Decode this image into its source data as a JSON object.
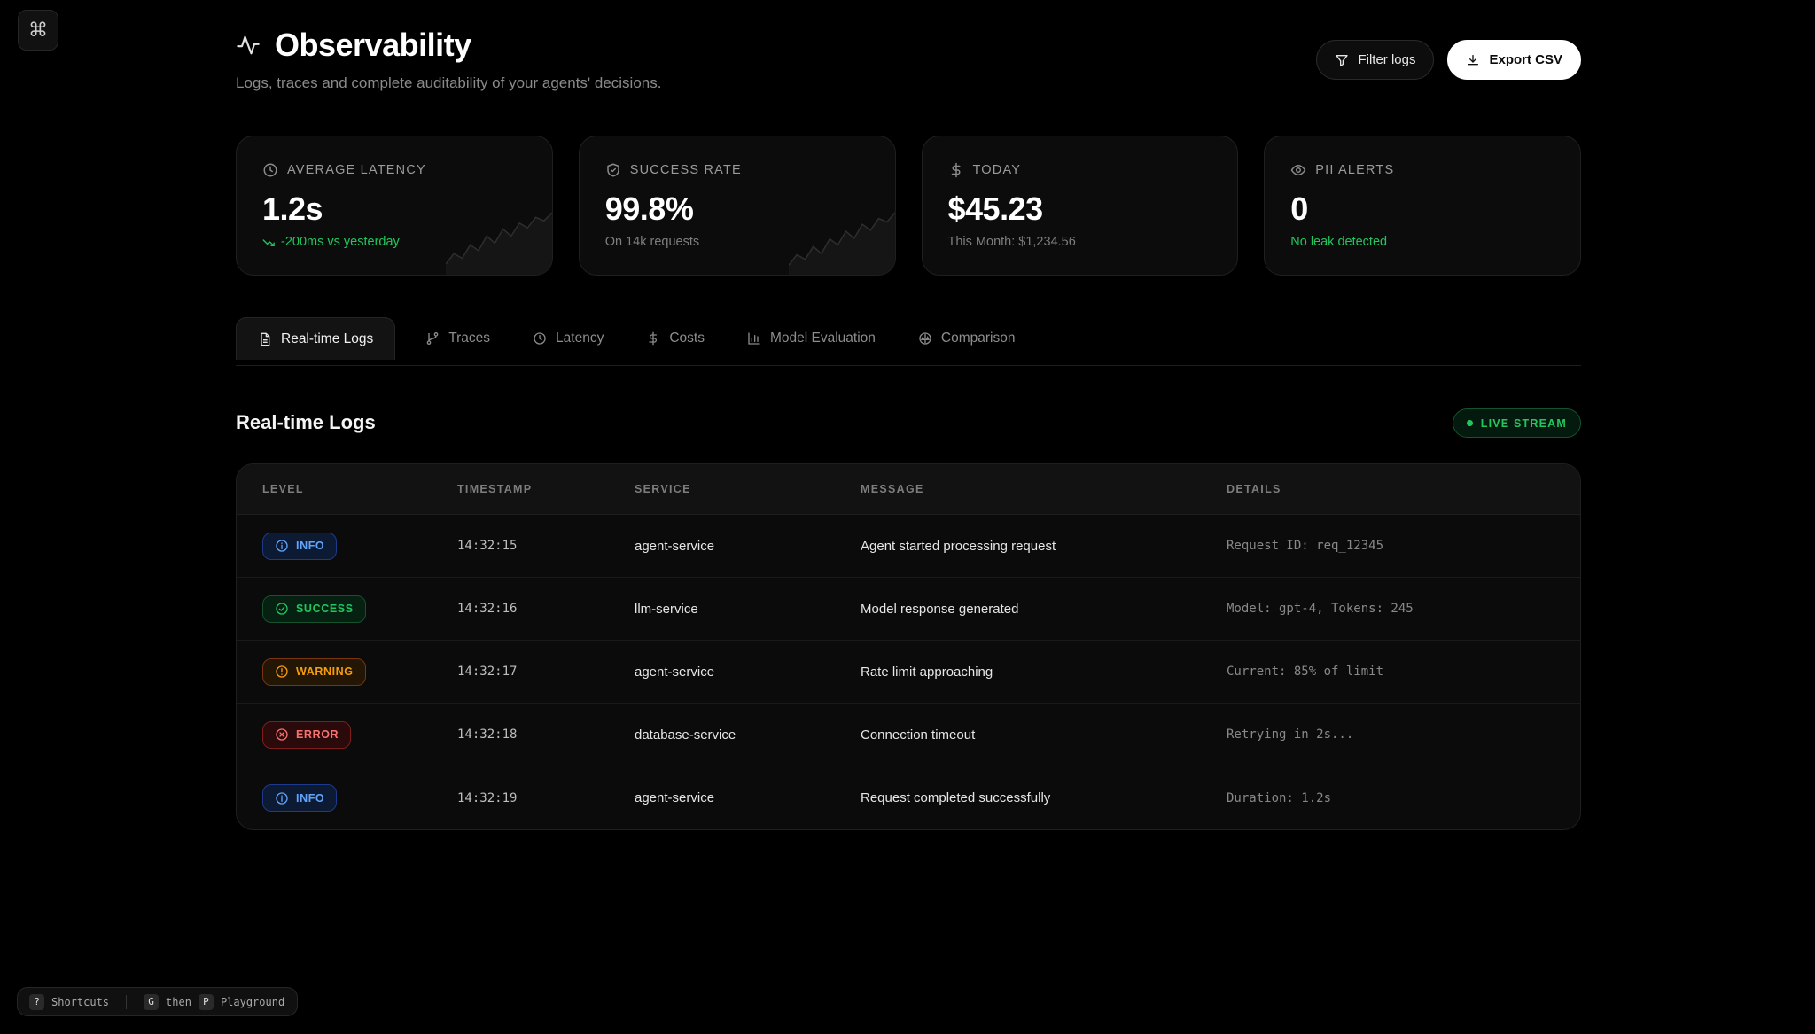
{
  "app": {
    "title": "Observability",
    "subtitle": "Logs, traces and complete auditability of your agents' decisions.",
    "command_glyph": "⌘"
  },
  "actions": {
    "filter_label": "Filter logs",
    "export_label": "Export CSV"
  },
  "stats": [
    {
      "label": "AVERAGE LATENCY",
      "value": "1.2s",
      "sub": "-200ms vs yesterday",
      "sub_color": "green",
      "icon": "clock-icon",
      "spark_level": [
        0.12,
        0.3,
        0.22,
        0.45,
        0.35,
        0.6,
        0.48,
        0.72,
        0.6,
        0.82,
        0.74,
        0.92,
        0.86,
        1.0
      ]
    },
    {
      "label": "SUCCESS RATE",
      "value": "99.8%",
      "sub": "On 14k requests",
      "sub_color": "gray",
      "icon": "shield-check-icon",
      "spark_level": [
        0.1,
        0.28,
        0.2,
        0.42,
        0.3,
        0.55,
        0.45,
        0.68,
        0.56,
        0.8,
        0.7,
        0.9,
        0.84,
        1.0
      ]
    },
    {
      "label": "TODAY",
      "value": "$45.23",
      "sub": "This Month: $1,234.56",
      "sub_color": "gray",
      "icon": "dollar-icon"
    },
    {
      "label": "PII ALERTS",
      "value": "0",
      "sub": "No leak detected",
      "sub_color": "green",
      "icon": "eye-icon"
    }
  ],
  "tabs": [
    {
      "label": "Real-time Logs",
      "icon": "file-icon",
      "active": true
    },
    {
      "label": "Traces",
      "icon": "git-branch-icon",
      "active": false
    },
    {
      "label": "Latency",
      "icon": "clock-icon",
      "active": false
    },
    {
      "label": "Costs",
      "icon": "dollar-icon",
      "active": false
    },
    {
      "label": "Model Evaluation",
      "icon": "bar-chart-icon",
      "active": false
    },
    {
      "label": "Comparison",
      "icon": "scale-icon",
      "active": false
    }
  ],
  "logs_section": {
    "title": "Real-time Logs",
    "live_label": "LIVE STREAM"
  },
  "table": {
    "columns": [
      "LEVEL",
      "TIMESTAMP",
      "SERVICE",
      "MESSAGE",
      "DETAILS"
    ],
    "rows": [
      {
        "level": "INFO",
        "kind": "info",
        "timestamp": "14:32:15",
        "service": "agent-service",
        "message": "Agent started processing request",
        "details": "Request ID: req_12345"
      },
      {
        "level": "SUCCESS",
        "kind": "success",
        "timestamp": "14:32:16",
        "service": "llm-service",
        "message": "Model response generated",
        "details": "Model: gpt-4, Tokens: 245"
      },
      {
        "level": "WARNING",
        "kind": "warning",
        "timestamp": "14:32:17",
        "service": "agent-service",
        "message": "Rate limit approaching",
        "details": "Current: 85% of limit"
      },
      {
        "level": "ERROR",
        "kind": "error",
        "timestamp": "14:32:18",
        "service": "database-service",
        "message": "Connection timeout",
        "details": "Retrying in 2s..."
      },
      {
        "level": "INFO",
        "kind": "info",
        "timestamp": "14:32:19",
        "service": "agent-service",
        "message": "Request completed successfully",
        "details": "Duration: 1.2s"
      }
    ]
  },
  "shortcuts": {
    "help_key": "?",
    "help_label": "Shortcuts",
    "g_key": "G",
    "then_label": "then",
    "p_key": "P",
    "playground_label": "Playground"
  }
}
